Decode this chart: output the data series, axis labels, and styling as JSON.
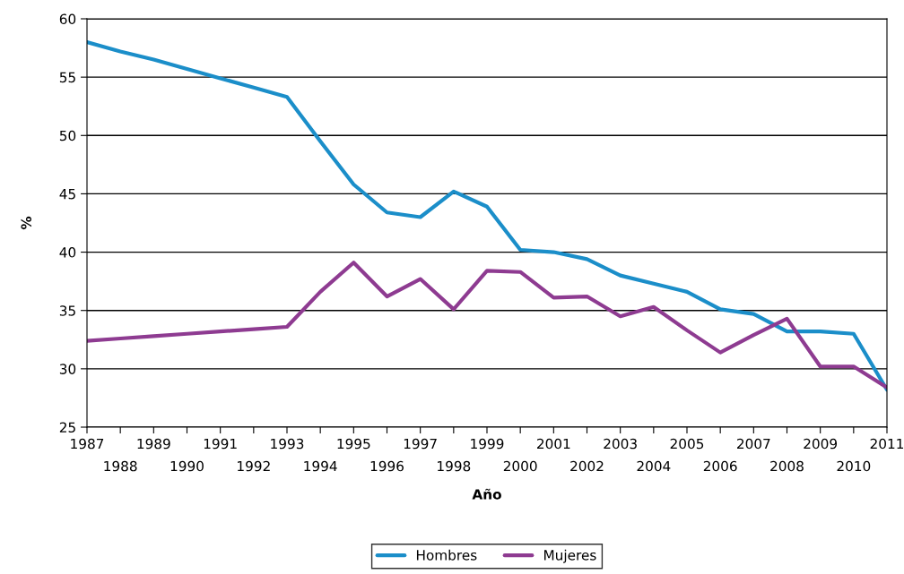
{
  "chart_data": {
    "type": "line",
    "xlabel": "Año",
    "ylabel": "%",
    "categories": [
      "1987",
      "1988",
      "1989",
      "1990",
      "1991",
      "1992",
      "1993",
      "1994",
      "1995",
      "1996",
      "1997",
      "1998",
      "1999",
      "2000",
      "2001",
      "2002",
      "2003",
      "2004",
      "2005",
      "2006",
      "2007",
      "2008",
      "2009",
      "2010",
      "2011"
    ],
    "series": [
      {
        "name": "Hombres",
        "color": "#1b8ec9",
        "values": [
          58.0,
          57.2,
          56.5,
          55.7,
          54.9,
          54.1,
          53.3,
          49.5,
          45.8,
          43.4,
          43.0,
          45.2,
          43.9,
          40.2,
          40.0,
          39.4,
          38.0,
          37.3,
          36.6,
          35.1,
          34.7,
          33.2,
          33.2,
          33.0,
          28.2
        ]
      },
      {
        "name": "Mujeres",
        "color": "#8e3b91",
        "values": [
          32.4,
          32.6,
          32.8,
          33.0,
          33.2,
          33.4,
          33.6,
          36.6,
          39.1,
          36.2,
          37.7,
          35.1,
          38.4,
          38.3,
          36.1,
          36.2,
          34.5,
          35.3,
          33.3,
          31.4,
          32.9,
          34.3,
          30.2,
          30.2,
          28.4
        ]
      }
    ],
    "ylim": [
      25,
      60
    ],
    "yticks": [
      25,
      30,
      35,
      40,
      45,
      50,
      55,
      60
    ],
    "grid": "y",
    "legend": "bottom",
    "marker": "none",
    "line_style": "solid"
  }
}
